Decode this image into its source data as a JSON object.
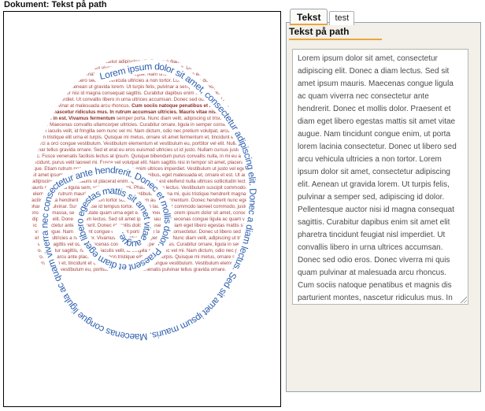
{
  "window": {
    "title": "Dokument: Tekst på path"
  },
  "canvas": {
    "spiral_text": "Lorem ipsum dolor sit amet, consectetur adipiscing elit. Donec a diam lectus. Sed sit amet ipsum mauris. Maecenas congue ligula ac quam viverra nec consectetur ante hendrerit. Donec et mollis dolor. Praesent et diam eget libero egestas mattis sit amet vitae augue. Nam tincidunt congue enim, ut porta lorem lacinia consectetur. Donec ut libero sed arcu vehicula ultricies a non tortor. Lorem ipsum dolor sit amet, consectetur adipiscing elit. Aenean ut gravida lorem.",
    "flow_text_1": "Lorem ipsum dolor sit amet, consectetur adipiscing elit. Donec a diam lectus. Sed sit amet ipsum mauris. Maecenas congue ligula ac quam viverra nec consectetur ante hendrerit. Donec et mollis dolor. Praesent et diam eget libero egestas mattis sit amet vitae augue. Nam tincidunt congue enim, ut porta lorem lacinia consectetur. Donec ut libero sed arcu vehicula ultricies a non tortor. Lorem ipsum dolor sit amet, consectetur adipiscing elit. Aenean ut gravida lorem. Ut turpis felis, pulvinar a semper sed, adipiscing id dolor. Pellentesque auctor nisi id magna consequat sagittis. Curabitur dapibus enim sit amet elit pharetra tincidunt feugiat nisl imperdiet. Ut convallis libero in urna ultrices accumsan. Donec sed odio eros. Donec viverra mi quis quam pulvinar at malesuada arcu rhoncus. ",
    "flow_text_bold": "Cum sociis natoque penatibus et magnis dis parturient montes, nascetur ridiculus mus. In rutrum accumsan ultricies. Mauris vitae nisi at sem facilisis semper ac in est. Vivamus fermentum",
    "flow_text_2": " semper porta. Nunc diam velit, adipiscing ut tristique vitae, sagittis vel odio. Maecenas convallis ullamcorper ultricies. Curabitur ornare, ligula in semper consectetur sagittis, nisi diam iaculis velit, id fringilla sem nunc vel mi. Nam dictum, odio nec pretium volutpat, arcu ante placerat erat, non tristique elit urna et turpis. Quisque mi metus, ornare sit amet fermentum et, tincidunt et orci. Fusce eget orci a orci congue vestibulum. Vestibulum elementum et vestibulum eu, porttitor vel elit. Nulla venenatis pulvinar tellus gravida ornare. Sed et erat eu eros euismod ultricies ut id justo. Nullam cursus justo sodales nec. Fusce venenatis facilisis lectus at ipsum. Quisque bibendum purus convallis nulla, in mi eu aliquam tincidunt, purus velit laoreet mi. Fusce vel volutpat elit. Nam sagittis nisi in tempor sit amet, placerat quis neque. Etiam rutrum non. Curabitur lobortis nisl a enim ultrices imperdiet. Vestibulum ut justo vel eget dolor sit amet ipsum dapibus. Aliquam ut massa in turpis dapibus, eget malesuada et, ornare et est. Ut augue adipiscing vitae orci. Mauris ut placerat enim. Quisque nec est eleifend nulla ultrices sollicitudin lectus a mauris pulvinar id ligula sem, vel elementum mi. Phasellus non lectus. Vestibulum suscipit commodo. Duis elementum rutrum mauris sed convallis. Proin vestibulum magna mi, quis tristique hendrerit magna, ac facilisis nulla hendrerit ut. Sed non tortor sodales quam auctor fermentum. Donec hendrerit nunc eget elit pharetra pulvinar. Suspendisse id tempus tortor. Aenean lacus, elit commodo laoreet commodo, justo nisl consequat massa, sed vulputate quam urna eget eros. Donec vel. Lorem ipsum dolor sit amet, consectetur adipiscing elit. Donec a diam lectus. Sed sit amet ipsum mauris. Maecenas congue ligula ac quam viverra nec consectetur ante hendrerit. Donec et mollis dolor. Praesent et diam eget libero egestas mattis sit amet vitae augue. Nam tincidunt congue enim, ut porta lorem lacinia consectetur. Donec ut libero sed arcu vehicula ultricies a non tortor. Vivamus fermentum semper porta. Nunc diam velit, adipiscing ut tristique vitae, sagittis vel odio. Maecenas convallis ullamcorper ultricies. Curabitur ornare, ligula in semper consectetur sagittis, nisi diam iaculis velit, id fringilla sem nunc vel mi. Nam dictum, odio nec pretium volutpat, arcu ante placerat erat, non tristique elit urna et turpis. Quisque mi metus, ornare sit amet fermentum et, tincidunt et orci. Fusce eget orci a orci congue vestibulum. Vestibulum elementum et vestibulum eu, porttitor vel elit. Nulla venenatis pulvinar tellus gravida ornare.",
    "colors": {
      "spiral_blue": "#2d5fae",
      "flow_red": "#a6423e",
      "accent_orange": "#eda43e"
    }
  },
  "editor": {
    "tabs": [
      {
        "label": "Tekst",
        "active": true
      },
      {
        "label": "test",
        "active": false
      }
    ],
    "panel_title": "Tekst på path",
    "textarea_value": "Lorem ipsum dolor sit amet, consectetur adipiscing elit. Donec a diam lectus. Sed sit amet ipsum mauris. Maecenas congue ligula ac quam viverra nec consectetur ante hendrerit. Donec et mollis dolor. Praesent et diam eget libero egestas mattis sit amet vitae augue. Nam tincidunt congue enim, ut porta lorem lacinia consectetur. Donec ut libero sed arcu vehicula ultricies a non tortor. Lorem ipsum dolor sit amet, consectetur adipiscing elit. Aenean ut gravida lorem. Ut turpis felis, pulvinar a semper sed, adipiscing id dolor. Pellentesque auctor nisi id magna consequat sagittis. Curabitur dapibus enim sit amet elit pharetra tincidunt feugiat nisl imperdiet. Ut convallis libero in urna ultrices accumsan. Donec sed odio eros. Donec viverra mi quis quam pulvinar at malesuada arcu rhoncus. Cum sociis natoque penatibus et magnis dis parturient montes, nascetur ridiculus mus. In rutrum accumsan ultricies. Mauris vitae nisi at sem facilisis semper ac in est."
  }
}
